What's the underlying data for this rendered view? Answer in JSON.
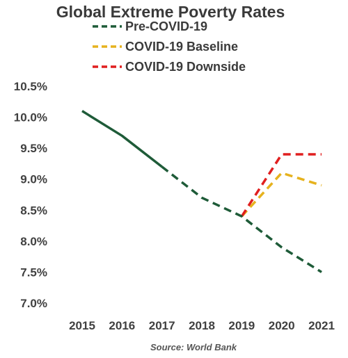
{
  "chart_data": {
    "type": "line",
    "title": "Global Extreme Poverty Rates",
    "source": "Source: World Bank",
    "xlabel": "",
    "ylabel": "",
    "x": [
      2015,
      2016,
      2017,
      2018,
      2019,
      2020,
      2021
    ],
    "x_tick_labels": [
      "2015",
      "2016",
      "2017",
      "2018",
      "2019",
      "2020",
      "2021"
    ],
    "y_tick_labels": [
      "7.0%",
      "7.5%",
      "8.0%",
      "8.5%",
      "9.0%",
      "9.5%",
      "10.0%",
      "10.5%"
    ],
    "y_ticks": [
      7.0,
      7.5,
      8.0,
      8.5,
      9.0,
      9.5,
      10.0,
      10.5
    ],
    "ylim": [
      7.0,
      10.5
    ],
    "grid": false,
    "legend_position": "top-right",
    "series": [
      {
        "name": "Pre-COVID-19",
        "color": "#1e5b38",
        "style": "solid through 2017, dashed after",
        "points": [
          [
            2015,
            10.1
          ],
          [
            2016,
            9.7
          ],
          [
            2017,
            9.2
          ],
          [
            2018,
            8.7
          ],
          [
            2019,
            8.4
          ],
          [
            2020,
            7.9
          ],
          [
            2021,
            7.5
          ]
        ]
      },
      {
        "name": "COVID-19 Baseline",
        "color": "#e6b21e",
        "style": "dashed",
        "points": [
          [
            2019,
            8.4
          ],
          [
            2020,
            9.1
          ],
          [
            2021,
            8.9
          ]
        ]
      },
      {
        "name": "COVID-19 Downside",
        "color": "#e01f1f",
        "style": "dashed",
        "points": [
          [
            2019,
            8.4
          ],
          [
            2020,
            9.4
          ],
          [
            2021,
            9.4
          ]
        ]
      }
    ]
  }
}
